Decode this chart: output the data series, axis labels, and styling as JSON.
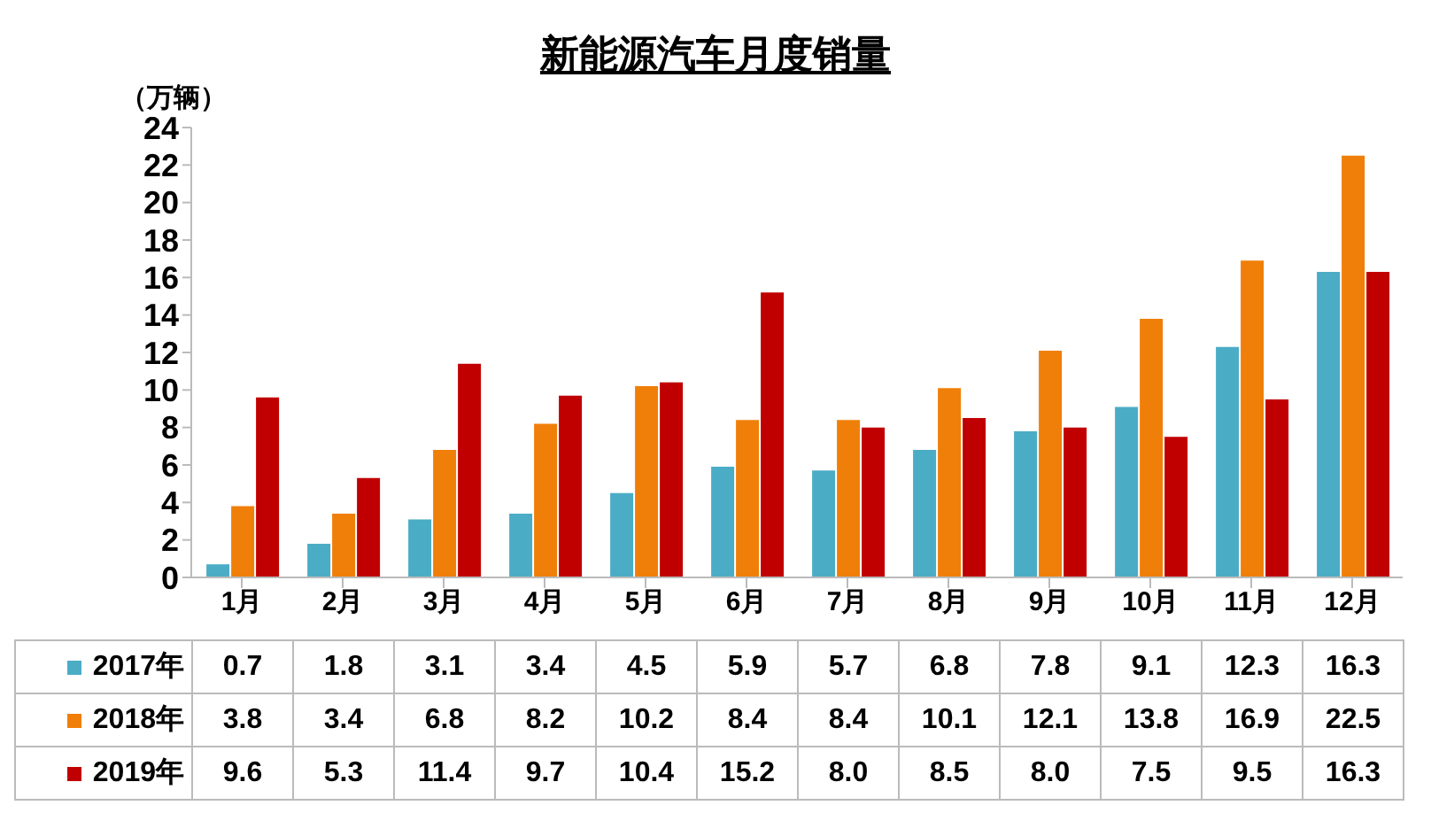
{
  "chart_data": {
    "type": "bar",
    "title": "新能源汽车月度销量",
    "ylabel": "（万辆）",
    "categories": [
      "1月",
      "2月",
      "3月",
      "4月",
      "5月",
      "6月",
      "7月",
      "8月",
      "9月",
      "10月",
      "11月",
      "12月"
    ],
    "series": [
      {
        "name": "2017年",
        "color": "#4bacc6",
        "values": [
          0.7,
          1.8,
          3.1,
          3.4,
          4.5,
          5.9,
          5.7,
          6.8,
          7.8,
          9.1,
          12.3,
          16.3
        ],
        "value_labels": [
          "0.7",
          "1.8",
          "3.1",
          "3.4",
          "4.5",
          "5.9",
          "5.7",
          "6.8",
          "7.8",
          "9.1",
          "12.3",
          "16.3"
        ]
      },
      {
        "name": "2018年",
        "color": "#f07f09",
        "values": [
          3.8,
          3.4,
          6.8,
          8.2,
          10.2,
          8.4,
          8.4,
          10.1,
          12.1,
          13.8,
          16.9,
          22.5
        ],
        "value_labels": [
          "3.8",
          "3.4",
          "6.8",
          "8.2",
          "10.2",
          "8.4",
          "8.4",
          "10.1",
          "12.1",
          "13.8",
          "16.9",
          "22.5"
        ]
      },
      {
        "name": "2019年",
        "color": "#c00000",
        "values": [
          9.6,
          5.3,
          11.4,
          9.7,
          10.4,
          15.2,
          8.0,
          8.5,
          8.0,
          7.5,
          9.5,
          16.3
        ],
        "value_labels": [
          "9.6",
          "5.3",
          "11.4",
          "9.7",
          "10.4",
          "15.2",
          "8.0",
          "8.5",
          "8.0",
          "7.5",
          "9.5",
          "16.3"
        ]
      }
    ],
    "ylim": [
      0,
      24
    ],
    "yticks": [
      0,
      2,
      4,
      6,
      8,
      10,
      12,
      14,
      16,
      18,
      20,
      22,
      24
    ],
    "legend": "bottom"
  }
}
